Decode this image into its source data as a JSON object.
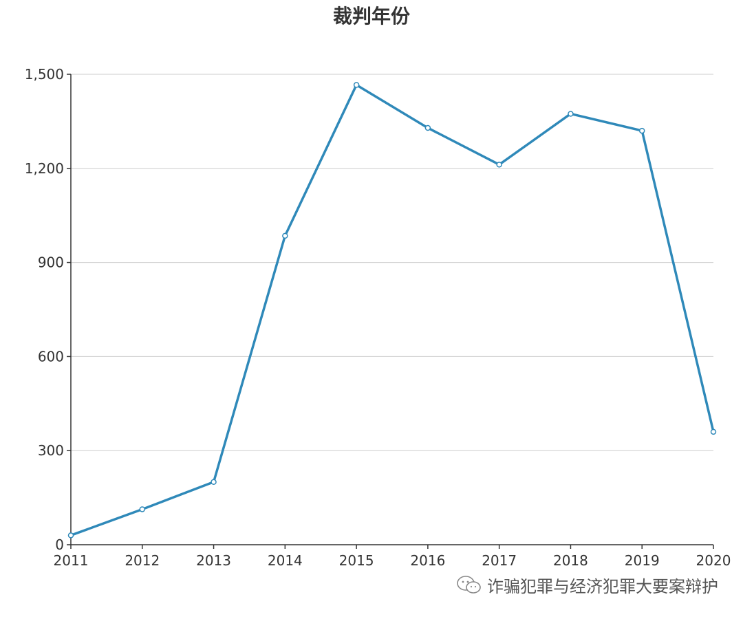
{
  "chart_data": {
    "type": "line",
    "title": "裁判年份",
    "xlabel": "",
    "ylabel": "",
    "categories": [
      "2011",
      "2012",
      "2013",
      "2014",
      "2015",
      "2016",
      "2017",
      "2018",
      "2019",
      "2020"
    ],
    "series": [
      {
        "values": [
          30,
          113,
          200,
          985,
          1466,
          1329,
          1212,
          1374,
          1320,
          360
        ]
      }
    ],
    "ylim": [
      0,
      1500
    ],
    "yticks": [
      0,
      300,
      600,
      900,
      1200,
      1500
    ],
    "ytick_labels": [
      "0",
      "300",
      "600",
      "900",
      "1,200",
      "1,500"
    ],
    "grid": true,
    "legend": "none",
    "colors": {
      "series": "#2f89b9",
      "grid": "#cccccc",
      "axis": "#333333"
    }
  },
  "watermark": {
    "icon": "wechat-icon",
    "text": "诈骗犯罪与经济犯罪大要案辩护"
  }
}
